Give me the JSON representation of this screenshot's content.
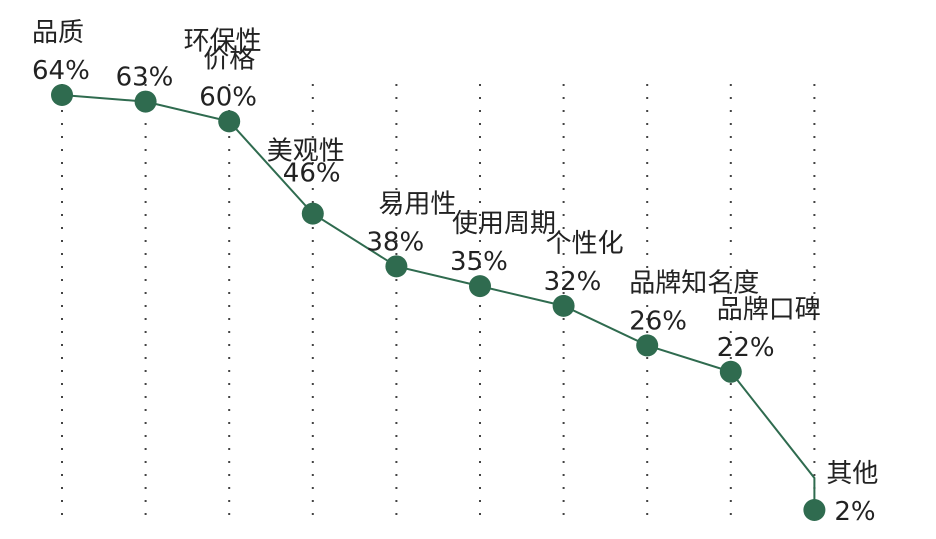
{
  "chart_data": {
    "type": "line",
    "title": "",
    "xlabel": "",
    "ylabel": "",
    "ylim": [
      0,
      70
    ],
    "grid": "vertical dotted lines at each category",
    "categories": [
      "品质",
      "环保性",
      "价格",
      "美观性",
      "易用性",
      "使用周期",
      "个性化",
      "品牌知名度",
      "品牌口碑",
      "其他"
    ],
    "values": [
      64,
      63,
      60,
      46,
      38,
      35,
      32,
      26,
      22,
      2
    ],
    "value_labels": [
      "64%",
      "63%",
      "60%",
      "46%",
      "38%",
      "35%",
      "32%",
      "26%",
      "22%",
      "2%"
    ],
    "colors": {
      "line": "#2f6b4f",
      "marker": "#2f6b4f",
      "grid": "#444444",
      "text": "#222222"
    }
  }
}
